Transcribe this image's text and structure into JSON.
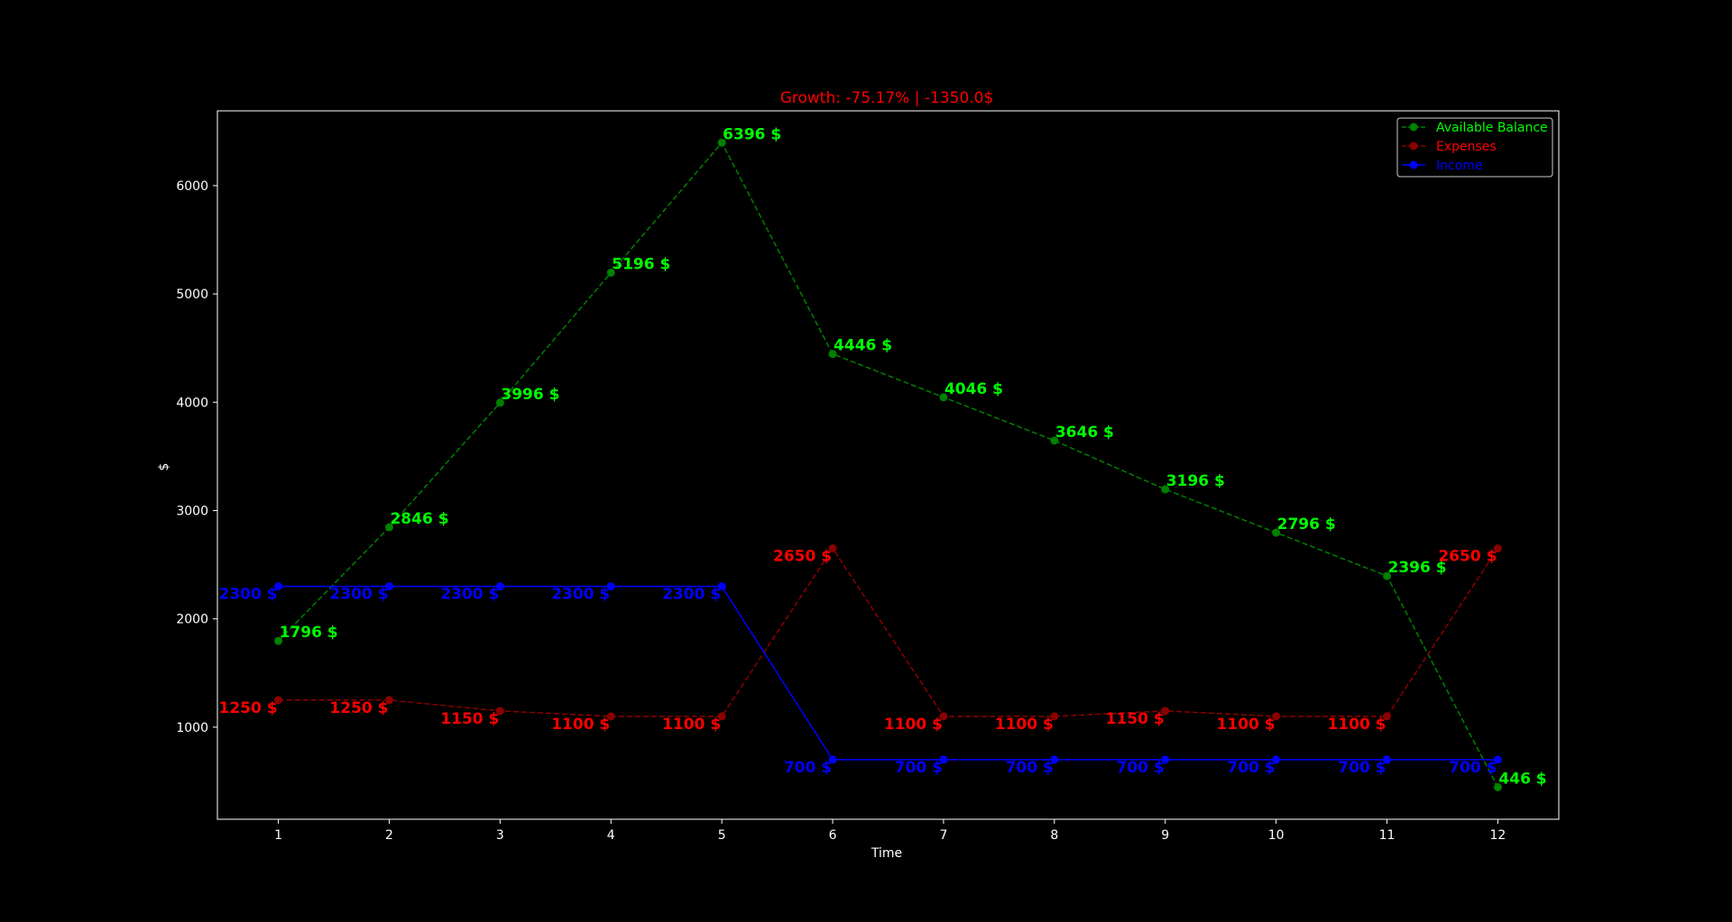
{
  "chart_data": {
    "type": "line",
    "title": "Growth: -75.17% | -1350.0$",
    "xlabel": "Time",
    "ylabel": "$",
    "x": [
      1,
      2,
      3,
      4,
      5,
      6,
      7,
      8,
      9,
      10,
      11,
      12
    ],
    "xlim": [
      0.45,
      12.55
    ],
    "ylim": [
      150,
      6690
    ],
    "yticks": [
      1000,
      2000,
      3000,
      4000,
      5000,
      6000
    ],
    "grid": false,
    "legend": "top-right",
    "label_suffix": " $",
    "colors": {
      "background": "#000000",
      "axes": "#ffffff",
      "title": "#ff0000"
    },
    "series": [
      {
        "name": "Available Balance",
        "color": "#008000",
        "label_color": "#00ff00",
        "line_style": "dashed",
        "values": [
          1796,
          2846,
          3996,
          5196,
          6396,
          4446,
          4046,
          3646,
          3196,
          2796,
          2396,
          446
        ]
      },
      {
        "name": "Expenses",
        "color": "#8b0000",
        "label_color": "#ff0000",
        "line_style": "dashed",
        "values": [
          1250,
          1250,
          1150,
          1100,
          1100,
          2650,
          1100,
          1100,
          1150,
          1100,
          1100,
          2650
        ]
      },
      {
        "name": "Income",
        "color": "#0000ff",
        "label_color": "#0000ff",
        "line_style": "solid",
        "values": [
          2300,
          2300,
          2300,
          2300,
          2300,
          700,
          700,
          700,
          700,
          700,
          700,
          700
        ]
      }
    ]
  }
}
